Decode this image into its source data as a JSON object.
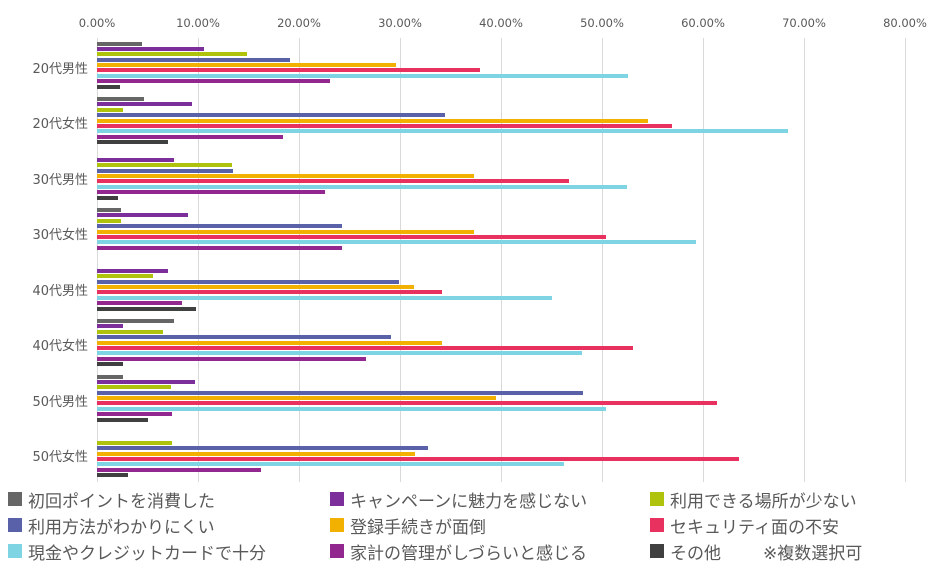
{
  "chart_data": {
    "type": "bar",
    "orientation": "horizontal",
    "title": "",
    "categories": [
      "20代男性",
      "20代女性",
      "30代男性",
      "30代女性",
      "40代男性",
      "40代女性",
      "50代男性",
      "50代女性"
    ],
    "series": [
      {
        "name": "初回ポイントを消費した",
        "color": "#666666",
        "values": [
          4.5,
          4.7,
          0,
          2.4,
          0,
          7.6,
          2.6,
          0
        ]
      },
      {
        "name": "キャンペーンに魅力を感じない",
        "color": "#7c2e9b",
        "values": [
          10.6,
          9.4,
          7.6,
          9.0,
          7.0,
          2.6,
          9.7,
          0
        ]
      },
      {
        "name": "利用できる場所が少ない",
        "color": "#afc30d",
        "values": [
          14.9,
          2.6,
          13.4,
          2.4,
          5.5,
          6.5,
          7.3,
          7.4
        ]
      },
      {
        "name": "利用方法がわかりにくい",
        "color": "#5961a9",
        "values": [
          19.1,
          34.5,
          13.5,
          24.3,
          29.9,
          29.1,
          48.1,
          32.8
        ]
      },
      {
        "name": "登録手続きが面倒",
        "color": "#f2b100",
        "values": [
          29.6,
          54.6,
          37.3,
          37.3,
          31.4,
          34.2,
          39.5,
          31.5
        ]
      },
      {
        "name": "セキュリティ面の不安",
        "color": "#e8315e",
        "values": [
          37.9,
          56.9,
          46.7,
          50.4,
          34.2,
          53.1,
          61.4,
          63.6
        ]
      },
      {
        "name": "現金やクレジットカードで十分",
        "color": "#7fd4e4",
        "values": [
          52.6,
          68.4,
          52.5,
          59.3,
          45.0,
          48.0,
          50.4,
          46.2
        ]
      },
      {
        "name": "家計の管理がしづらいと感じる",
        "color": "#92278f",
        "values": [
          23.1,
          18.4,
          22.6,
          24.3,
          8.4,
          26.6,
          7.4,
          16.2
        ]
      },
      {
        "name": "その他",
        "color": "#404040",
        "values": [
          2.3,
          7.0,
          2.1,
          0,
          9.8,
          2.6,
          5.0,
          3.1
        ]
      }
    ],
    "x_axis": {
      "tick_labels": [
        "0.00%",
        "10.00%",
        "20.00%",
        "30.00%",
        "40.00%",
        "50.00%",
        "60.00%",
        "70.00%",
        "80.00%"
      ],
      "min": 0,
      "max": 80,
      "grid": true
    },
    "legend": {
      "position": "bottom",
      "note": "※複数選択可"
    },
    "colors": {
      "gridline": "#d9d9d9",
      "axis_text": "#595959",
      "legend_text": "#595959"
    }
  }
}
